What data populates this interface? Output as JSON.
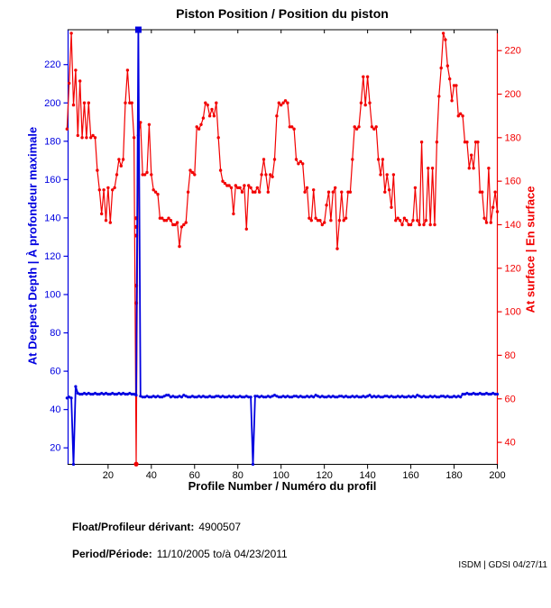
{
  "title": "Piston Position / Position du piston",
  "footer": {
    "float_label": "Float/Profileur dérivant:",
    "float_value": "4900507",
    "period_label": "Period/Période:",
    "period_value": "11/10/2005 to/à  04/23/2011",
    "credit": "ISDM | GDSI 04/27/11"
  },
  "colors": {
    "blue": "#0000e0",
    "red": "#f20000",
    "axis": "#000000",
    "background": "#ffffff"
  },
  "chart_data": {
    "type": "line",
    "title": "Piston Position / Position du piston",
    "xlabel": "Profile Number / Numéro du profil",
    "ylabel_left": "At Deepest Depth | À profondeur maximale",
    "ylabel_right": "At surface | En surface",
    "grid": false,
    "legend": false,
    "x_start": 1,
    "xlim": [
      1.5,
      200
    ],
    "x_ticks": [
      20,
      40,
      60,
      80,
      100,
      120,
      140,
      160,
      180,
      200
    ],
    "ylim_left": [
      11.4,
      238.2
    ],
    "y_ticks_left": [
      20,
      40,
      60,
      80,
      100,
      120,
      140,
      160,
      180,
      200,
      220
    ],
    "ylim_right": [
      29.9,
      229.6
    ],
    "y_ticks_right": [
      40,
      60,
      80,
      100,
      120,
      140,
      160,
      180,
      200,
      220
    ],
    "series": [
      {
        "name": "At surface | En surface",
        "axis": "right",
        "color": "#f20000",
        "values": [
          184,
          205,
          228,
          195,
          211,
          181,
          206,
          180,
          196,
          180,
          196,
          180,
          181,
          180,
          165,
          156,
          145,
          156,
          142,
          157,
          141,
          156,
          157,
          163,
          170,
          167,
          170,
          196,
          211,
          196,
          196,
          180,
          30,
          181,
          187,
          163,
          163,
          164,
          186,
          163,
          156,
          155,
          154,
          143,
          143,
          142,
          142,
          143,
          142,
          140,
          140,
          141,
          130,
          139,
          140,
          141,
          155,
          165,
          164,
          163,
          185,
          184,
          186,
          189,
          196,
          195,
          190,
          193,
          190,
          196,
          180,
          165,
          160,
          159,
          158,
          158,
          157,
          145,
          158,
          157,
          157,
          155,
          158,
          138,
          158,
          157,
          155,
          155,
          157,
          155,
          163,
          170,
          163,
          155,
          163,
          162,
          170,
          190,
          196,
          195,
          196,
          197,
          196,
          185,
          185,
          184,
          170,
          168,
          169,
          168,
          155,
          157,
          143,
          142,
          156,
          143,
          142,
          142,
          140,
          141,
          149,
          155,
          142,
          155,
          157,
          129,
          142,
          155,
          142,
          143,
          155,
          155,
          170,
          185,
          184,
          185,
          196,
          208,
          195,
          208,
          196,
          185,
          184,
          185,
          170,
          163,
          170,
          155,
          163,
          156,
          148,
          163,
          142,
          143,
          142,
          140,
          143,
          142,
          140,
          140,
          142,
          157,
          142,
          140,
          178,
          140,
          142,
          166,
          140,
          166,
          140,
          178,
          199,
          212,
          228,
          225,
          213,
          207,
          197,
          204,
          204,
          190,
          191,
          190,
          178,
          178,
          166,
          172,
          166,
          178,
          178,
          155,
          155,
          143,
          141,
          166,
          141,
          148,
          155,
          146
        ]
      },
      {
        "name": "At Deepest Depth | À profondeur maximale",
        "axis": "left",
        "color": "#0000e0",
        "values": [
          46,
          46.5,
          46,
          11.4,
          52,
          48.5,
          48,
          48,
          48.5,
          48,
          48.5,
          48,
          48,
          48.5,
          48,
          48,
          48.5,
          48,
          48.5,
          48,
          48,
          48.5,
          48,
          48,
          48.5,
          48,
          48.5,
          48,
          48,
          48.5,
          48,
          48,
          47.5,
          238.2,
          47,
          46.5,
          46.5,
          47,
          46.5,
          46.5,
          47,
          46.5,
          47,
          46.5,
          46.5,
          47,
          47.5,
          47.5,
          46.5,
          47,
          46.5,
          46.5,
          47,
          46.5,
          47.5,
          47,
          46.5,
          46.5,
          47,
          46.5,
          46.5,
          47,
          46.5,
          47,
          46.5,
          46.5,
          47,
          46.5,
          46.5,
          47,
          47,
          46.5,
          47,
          46.5,
          46.5,
          47,
          46.5,
          47,
          46.5,
          46.5,
          47,
          46.5,
          46.5,
          47,
          46.5,
          46.5,
          11.4,
          47,
          47,
          46.5,
          47,
          46.5,
          46.5,
          47,
          46.5,
          47,
          47.5,
          47,
          46.5,
          46.5,
          47,
          46.5,
          47,
          46.5,
          46.5,
          47,
          47,
          46.5,
          47,
          46.5,
          46.5,
          47,
          46.5,
          47,
          46.5,
          47.5,
          47,
          46.5,
          47,
          46.5,
          46.5,
          47,
          46.5,
          47,
          46.5,
          46.5,
          47,
          47,
          46.5,
          47,
          46.5,
          46.5,
          47,
          46.5,
          47,
          46.5,
          46.5,
          47,
          46.5,
          47,
          47.5,
          46.5,
          47,
          46.5,
          47,
          46.5,
          46.5,
          47,
          47,
          46.5,
          47,
          46.5,
          46.5,
          47,
          46.5,
          47,
          46.5,
          46.5,
          47,
          46.5,
          47,
          46.5,
          47.5,
          47,
          46.5,
          47,
          46.5,
          46.5,
          47,
          46.5,
          47,
          46.5,
          46.5,
          47,
          47,
          46.5,
          47,
          46.5,
          46.5,
          47,
          46.5,
          47,
          46.5,
          48,
          48,
          48.5,
          48,
          48,
          48.5,
          48,
          48,
          48.5,
          48,
          48,
          48.5,
          48,
          48,
          48.5,
          48,
          48
        ]
      }
    ],
    "annotations": {
      "red_column_markers": [
        {
          "x": 33,
          "y": 143
        },
        {
          "x": 33,
          "y": 139
        },
        {
          "x": 33,
          "y": 135
        },
        {
          "x": 33,
          "y": 112
        },
        {
          "x": 33,
          "y": 104
        }
      ],
      "red_bottom_dot": {
        "x": 33,
        "y": 30
      },
      "blue_top_square": {
        "x": 34
      }
    }
  }
}
